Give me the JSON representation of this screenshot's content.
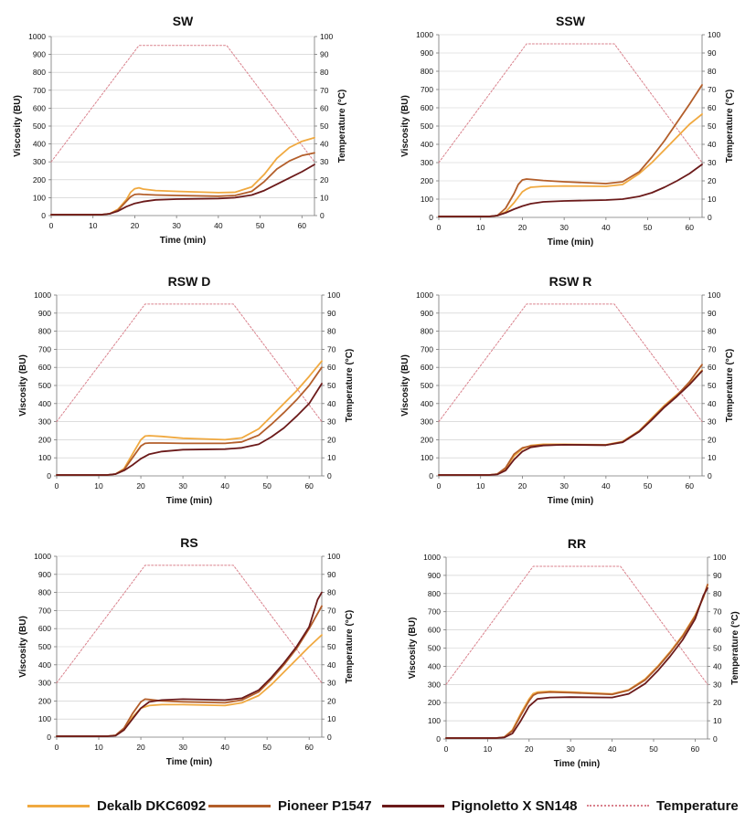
{
  "colors": {
    "dekalb": "#F0A940",
    "pioneer": "#B35E2A",
    "pignoletto": "#6B1A1A",
    "temperature": "#D9818C",
    "axis": "#777777",
    "grid": "#C9C9C9",
    "text": "#111111"
  },
  "legend": {
    "dekalb": "Dekalb DKC6092",
    "pioneer": "Pioneer P1547",
    "pignoletto": "Pignoletto X SN148",
    "temperature": "Temperature"
  },
  "chart_data": [
    {
      "type": "line",
      "title": "SW",
      "xlabel": "Time (min)",
      "ylabel": "Viscosity (BU)",
      "y2label": "Temperature (°C)",
      "xlim": [
        0,
        63
      ],
      "ylim": [
        0,
        1000
      ],
      "y2lim": [
        0,
        100
      ],
      "xticks": [
        0,
        10,
        20,
        30,
        40,
        50,
        60
      ],
      "yticks": [
        0,
        100,
        200,
        300,
        400,
        500,
        600,
        700,
        800,
        900,
        1000
      ],
      "y2ticks": [
        0,
        10,
        20,
        30,
        40,
        50,
        60,
        70,
        80,
        90,
        100
      ],
      "series": [
        {
          "name": "Dekalb DKC6092",
          "x": [
            0,
            12,
            14,
            16,
            18,
            19,
            20,
            21,
            22,
            25,
            30,
            40,
            44,
            48,
            51,
            54,
            57,
            60,
            63
          ],
          "values": [
            5,
            5,
            10,
            35,
            90,
            130,
            150,
            155,
            148,
            140,
            135,
            128,
            130,
            160,
            230,
            320,
            380,
            415,
            435
          ]
        },
        {
          "name": "Pioneer P1547",
          "x": [
            0,
            12,
            14,
            16,
            18,
            19,
            20,
            21,
            22,
            25,
            30,
            40,
            44,
            48,
            51,
            54,
            57,
            60,
            63
          ],
          "values": [
            5,
            5,
            10,
            30,
            80,
            105,
            118,
            120,
            118,
            115,
            112,
            108,
            112,
            135,
            190,
            260,
            305,
            335,
            350
          ]
        },
        {
          "name": "Pignoletto X SN148",
          "x": [
            0,
            12,
            14,
            16,
            18,
            20,
            22,
            25,
            30,
            40,
            44,
            48,
            51,
            54,
            57,
            60,
            63
          ],
          "values": [
            5,
            5,
            10,
            25,
            50,
            68,
            78,
            88,
            92,
            95,
            100,
            115,
            140,
            175,
            210,
            245,
            285
          ]
        },
        {
          "name": "Temperature",
          "axis": "y2",
          "x": [
            0,
            21,
            42,
            63
          ],
          "values": [
            30,
            95,
            95,
            30
          ]
        }
      ]
    },
    {
      "type": "line",
      "title": "SSW",
      "xlabel": "Time (min)",
      "ylabel": "Viscosity (BU)",
      "y2label": "Temperature (°C)",
      "xlim": [
        0,
        63
      ],
      "ylim": [
        0,
        1000
      ],
      "y2lim": [
        0,
        100
      ],
      "xticks": [
        0,
        10,
        20,
        30,
        40,
        50,
        60
      ],
      "yticks": [
        0,
        100,
        200,
        300,
        400,
        500,
        600,
        700,
        800,
        900,
        1000
      ],
      "y2ticks": [
        0,
        10,
        20,
        30,
        40,
        50,
        60,
        70,
        80,
        90,
        100
      ],
      "series": [
        {
          "name": "Dekalb DKC6092",
          "x": [
            0,
            12,
            14,
            16,
            18,
            20,
            21,
            22,
            25,
            30,
            40,
            44,
            48,
            51,
            54,
            57,
            60,
            63
          ],
          "values": [
            5,
            5,
            10,
            30,
            80,
            140,
            155,
            165,
            170,
            172,
            170,
            180,
            240,
            300,
            370,
            440,
            510,
            565
          ]
        },
        {
          "name": "Pioneer P1547",
          "x": [
            0,
            12,
            14,
            16,
            18,
            19,
            20,
            21,
            22,
            25,
            30,
            40,
            44,
            48,
            51,
            54,
            57,
            60,
            63
          ],
          "values": [
            5,
            5,
            10,
            50,
            130,
            180,
            205,
            210,
            208,
            202,
            195,
            185,
            195,
            250,
            330,
            420,
            520,
            620,
            725
          ]
        },
        {
          "name": "Pignoletto X SN148",
          "x": [
            0,
            12,
            14,
            16,
            18,
            20,
            22,
            25,
            30,
            40,
            44,
            48,
            51,
            54,
            57,
            60,
            63
          ],
          "values": [
            5,
            5,
            10,
            25,
            45,
            62,
            75,
            85,
            90,
            95,
            100,
            115,
            135,
            165,
            200,
            240,
            290
          ]
        },
        {
          "name": "Temperature",
          "axis": "y2",
          "x": [
            0,
            21,
            42,
            63
          ],
          "values": [
            30,
            95,
            95,
            30
          ]
        }
      ]
    },
    {
      "type": "line",
      "title": "RSW D",
      "xlabel": "Time (min)",
      "ylabel": "Viscosity (BU)",
      "y2label": "Temperature (°C)",
      "xlim": [
        0,
        63
      ],
      "ylim": [
        0,
        1000
      ],
      "y2lim": [
        0,
        100
      ],
      "xticks": [
        0,
        10,
        20,
        30,
        40,
        50,
        60
      ],
      "yticks": [
        0,
        100,
        200,
        300,
        400,
        500,
        600,
        700,
        800,
        900,
        1000
      ],
      "y2ticks": [
        0,
        10,
        20,
        30,
        40,
        50,
        60,
        70,
        80,
        90,
        100
      ],
      "series": [
        {
          "name": "Dekalb DKC6092",
          "x": [
            0,
            12,
            14,
            16,
            18,
            20,
            21,
            22,
            25,
            30,
            40,
            44,
            48,
            51,
            54,
            57,
            60,
            63
          ],
          "values": [
            5,
            5,
            10,
            40,
            120,
            200,
            220,
            222,
            218,
            208,
            200,
            210,
            260,
            330,
            400,
            470,
            550,
            635
          ]
        },
        {
          "name": "Pioneer P1547",
          "x": [
            0,
            12,
            14,
            16,
            18,
            20,
            21,
            22,
            25,
            30,
            40,
            44,
            48,
            51,
            54,
            57,
            60,
            63
          ],
          "values": [
            5,
            5,
            10,
            35,
            100,
            165,
            180,
            182,
            182,
            180,
            180,
            188,
            225,
            285,
            350,
            420,
            500,
            600
          ]
        },
        {
          "name": "Pignoletto X SN148",
          "x": [
            0,
            12,
            14,
            16,
            18,
            20,
            22,
            25,
            30,
            40,
            44,
            48,
            51,
            54,
            57,
            60,
            63
          ],
          "values": [
            5,
            5,
            10,
            30,
            60,
            95,
            120,
            135,
            145,
            148,
            155,
            175,
            215,
            265,
            330,
            400,
            510
          ]
        },
        {
          "name": "Temperature",
          "axis": "y2",
          "x": [
            0,
            21,
            42,
            63
          ],
          "values": [
            30,
            95,
            95,
            30
          ]
        }
      ]
    },
    {
      "type": "line",
      "title": "RSW R",
      "xlabel": "Time (min)",
      "ylabel": "Viscosity (BU)",
      "y2label": "Temperature (°C)",
      "xlim": [
        0,
        63
      ],
      "ylim": [
        0,
        1000
      ],
      "y2lim": [
        0,
        100
      ],
      "xticks": [
        0,
        10,
        20,
        30,
        40,
        50,
        60
      ],
      "yticks": [
        0,
        100,
        200,
        300,
        400,
        500,
        600,
        700,
        800,
        900,
        1000
      ],
      "y2ticks": [
        0,
        10,
        20,
        30,
        40,
        50,
        60,
        70,
        80,
        90,
        100
      ],
      "series": [
        {
          "name": "Dekalb DKC6092",
          "x": [
            0,
            12,
            14,
            16,
            18,
            20,
            22,
            25,
            30,
            40,
            44,
            48,
            51,
            54,
            57,
            60,
            63
          ],
          "values": [
            5,
            5,
            10,
            40,
            110,
            150,
            168,
            175,
            175,
            172,
            190,
            250,
            320,
            390,
            450,
            510,
            585
          ]
        },
        {
          "name": "Pioneer P1547",
          "x": [
            0,
            12,
            14,
            16,
            18,
            20,
            22,
            25,
            30,
            40,
            44,
            48,
            51,
            54,
            57,
            60,
            63
          ],
          "values": [
            5,
            5,
            10,
            45,
            120,
            155,
            165,
            170,
            172,
            170,
            188,
            248,
            315,
            385,
            445,
            520,
            615
          ]
        },
        {
          "name": "Pignoletto X SN148",
          "x": [
            0,
            12,
            14,
            16,
            18,
            20,
            22,
            25,
            30,
            40,
            44,
            48,
            51,
            54,
            57,
            60,
            63
          ],
          "values": [
            5,
            5,
            8,
            30,
            90,
            135,
            158,
            168,
            172,
            170,
            186,
            245,
            310,
            380,
            440,
            505,
            580
          ]
        },
        {
          "name": "Temperature",
          "axis": "y2",
          "x": [
            0,
            21,
            42,
            63
          ],
          "values": [
            30,
            95,
            95,
            30
          ]
        }
      ]
    },
    {
      "type": "line",
      "title": "RS",
      "xlabel": "Time (min)",
      "ylabel": "Viscosity (BU)",
      "y2label": "Temperature (°C)",
      "xlim": [
        0,
        63
      ],
      "ylim": [
        0,
        1000
      ],
      "y2lim": [
        0,
        100
      ],
      "xticks": [
        0,
        10,
        20,
        30,
        40,
        50,
        60
      ],
      "yticks": [
        0,
        100,
        200,
        300,
        400,
        500,
        600,
        700,
        800,
        900,
        1000
      ],
      "y2ticks": [
        0,
        10,
        20,
        30,
        40,
        50,
        60,
        70,
        80,
        90,
        100
      ],
      "series": [
        {
          "name": "Dekalb DKC6092",
          "x": [
            0,
            12,
            14,
            16,
            18,
            20,
            22,
            25,
            30,
            40,
            44,
            48,
            51,
            54,
            57,
            60,
            63
          ],
          "values": [
            5,
            5,
            10,
            40,
            110,
            160,
            175,
            180,
            180,
            175,
            190,
            230,
            290,
            360,
            430,
            500,
            565
          ]
        },
        {
          "name": "Pioneer P1547",
          "x": [
            0,
            12,
            14,
            16,
            18,
            20,
            21,
            22,
            25,
            30,
            40,
            44,
            48,
            51,
            54,
            57,
            60,
            63
          ],
          "values": [
            5,
            5,
            10,
            50,
            130,
            195,
            210,
            208,
            200,
            195,
            190,
            205,
            250,
            320,
            400,
            490,
            600,
            725
          ]
        },
        {
          "name": "Pignoletto X SN148",
          "x": [
            0,
            12,
            14,
            16,
            18,
            20,
            22,
            25,
            30,
            40,
            44,
            48,
            51,
            54,
            57,
            60,
            62,
            63
          ],
          "values": [
            5,
            5,
            8,
            40,
            100,
            160,
            195,
            205,
            210,
            205,
            215,
            260,
            330,
            410,
            500,
            610,
            760,
            800
          ]
        },
        {
          "name": "Temperature",
          "axis": "y2",
          "x": [
            0,
            21,
            42,
            63
          ],
          "values": [
            30,
            95,
            95,
            30
          ]
        }
      ]
    },
    {
      "type": "line",
      "title": "RR",
      "xlabel": "Time (min)",
      "ylabel": "Viscosity (BU)",
      "y2label": "Temperature (°C)",
      "xlim": [
        0,
        63
      ],
      "ylim": [
        0,
        1000
      ],
      "y2lim": [
        0,
        100
      ],
      "xticks": [
        0,
        10,
        20,
        30,
        40,
        50,
        60
      ],
      "yticks": [
        0,
        100,
        200,
        300,
        400,
        500,
        600,
        700,
        800,
        900,
        1000
      ],
      "y2ticks": [
        0,
        10,
        20,
        30,
        40,
        50,
        60,
        70,
        80,
        90,
        100
      ],
      "series": [
        {
          "name": "Dekalb DKC6092",
          "x": [
            0,
            12,
            14,
            16,
            18,
            20,
            21,
            22,
            25,
            30,
            40,
            44,
            48,
            51,
            54,
            57,
            60,
            62,
            63
          ],
          "values": [
            5,
            5,
            10,
            50,
            140,
            220,
            250,
            258,
            262,
            258,
            248,
            270,
            330,
            400,
            480,
            570,
            680,
            780,
            845
          ]
        },
        {
          "name": "Pioneer P1547",
          "x": [
            0,
            12,
            14,
            16,
            18,
            20,
            21,
            22,
            25,
            30,
            40,
            44,
            48,
            51,
            54,
            57,
            60,
            62,
            63
          ],
          "values": [
            5,
            5,
            10,
            45,
            130,
            210,
            240,
            252,
            258,
            255,
            245,
            268,
            325,
            395,
            475,
            565,
            675,
            780,
            850
          ]
        },
        {
          "name": "Pignoletto X SN148",
          "x": [
            0,
            12,
            14,
            16,
            18,
            20,
            22,
            25,
            30,
            40,
            44,
            48,
            51,
            54,
            57,
            60,
            62,
            63
          ],
          "values": [
            5,
            5,
            8,
            30,
            100,
            180,
            220,
            228,
            230,
            228,
            248,
            305,
            375,
            455,
            545,
            660,
            790,
            830
          ]
        },
        {
          "name": "Temperature",
          "axis": "y2",
          "x": [
            0,
            21,
            42,
            63
          ],
          "values": [
            30,
            95,
            95,
            30
          ]
        }
      ]
    }
  ]
}
